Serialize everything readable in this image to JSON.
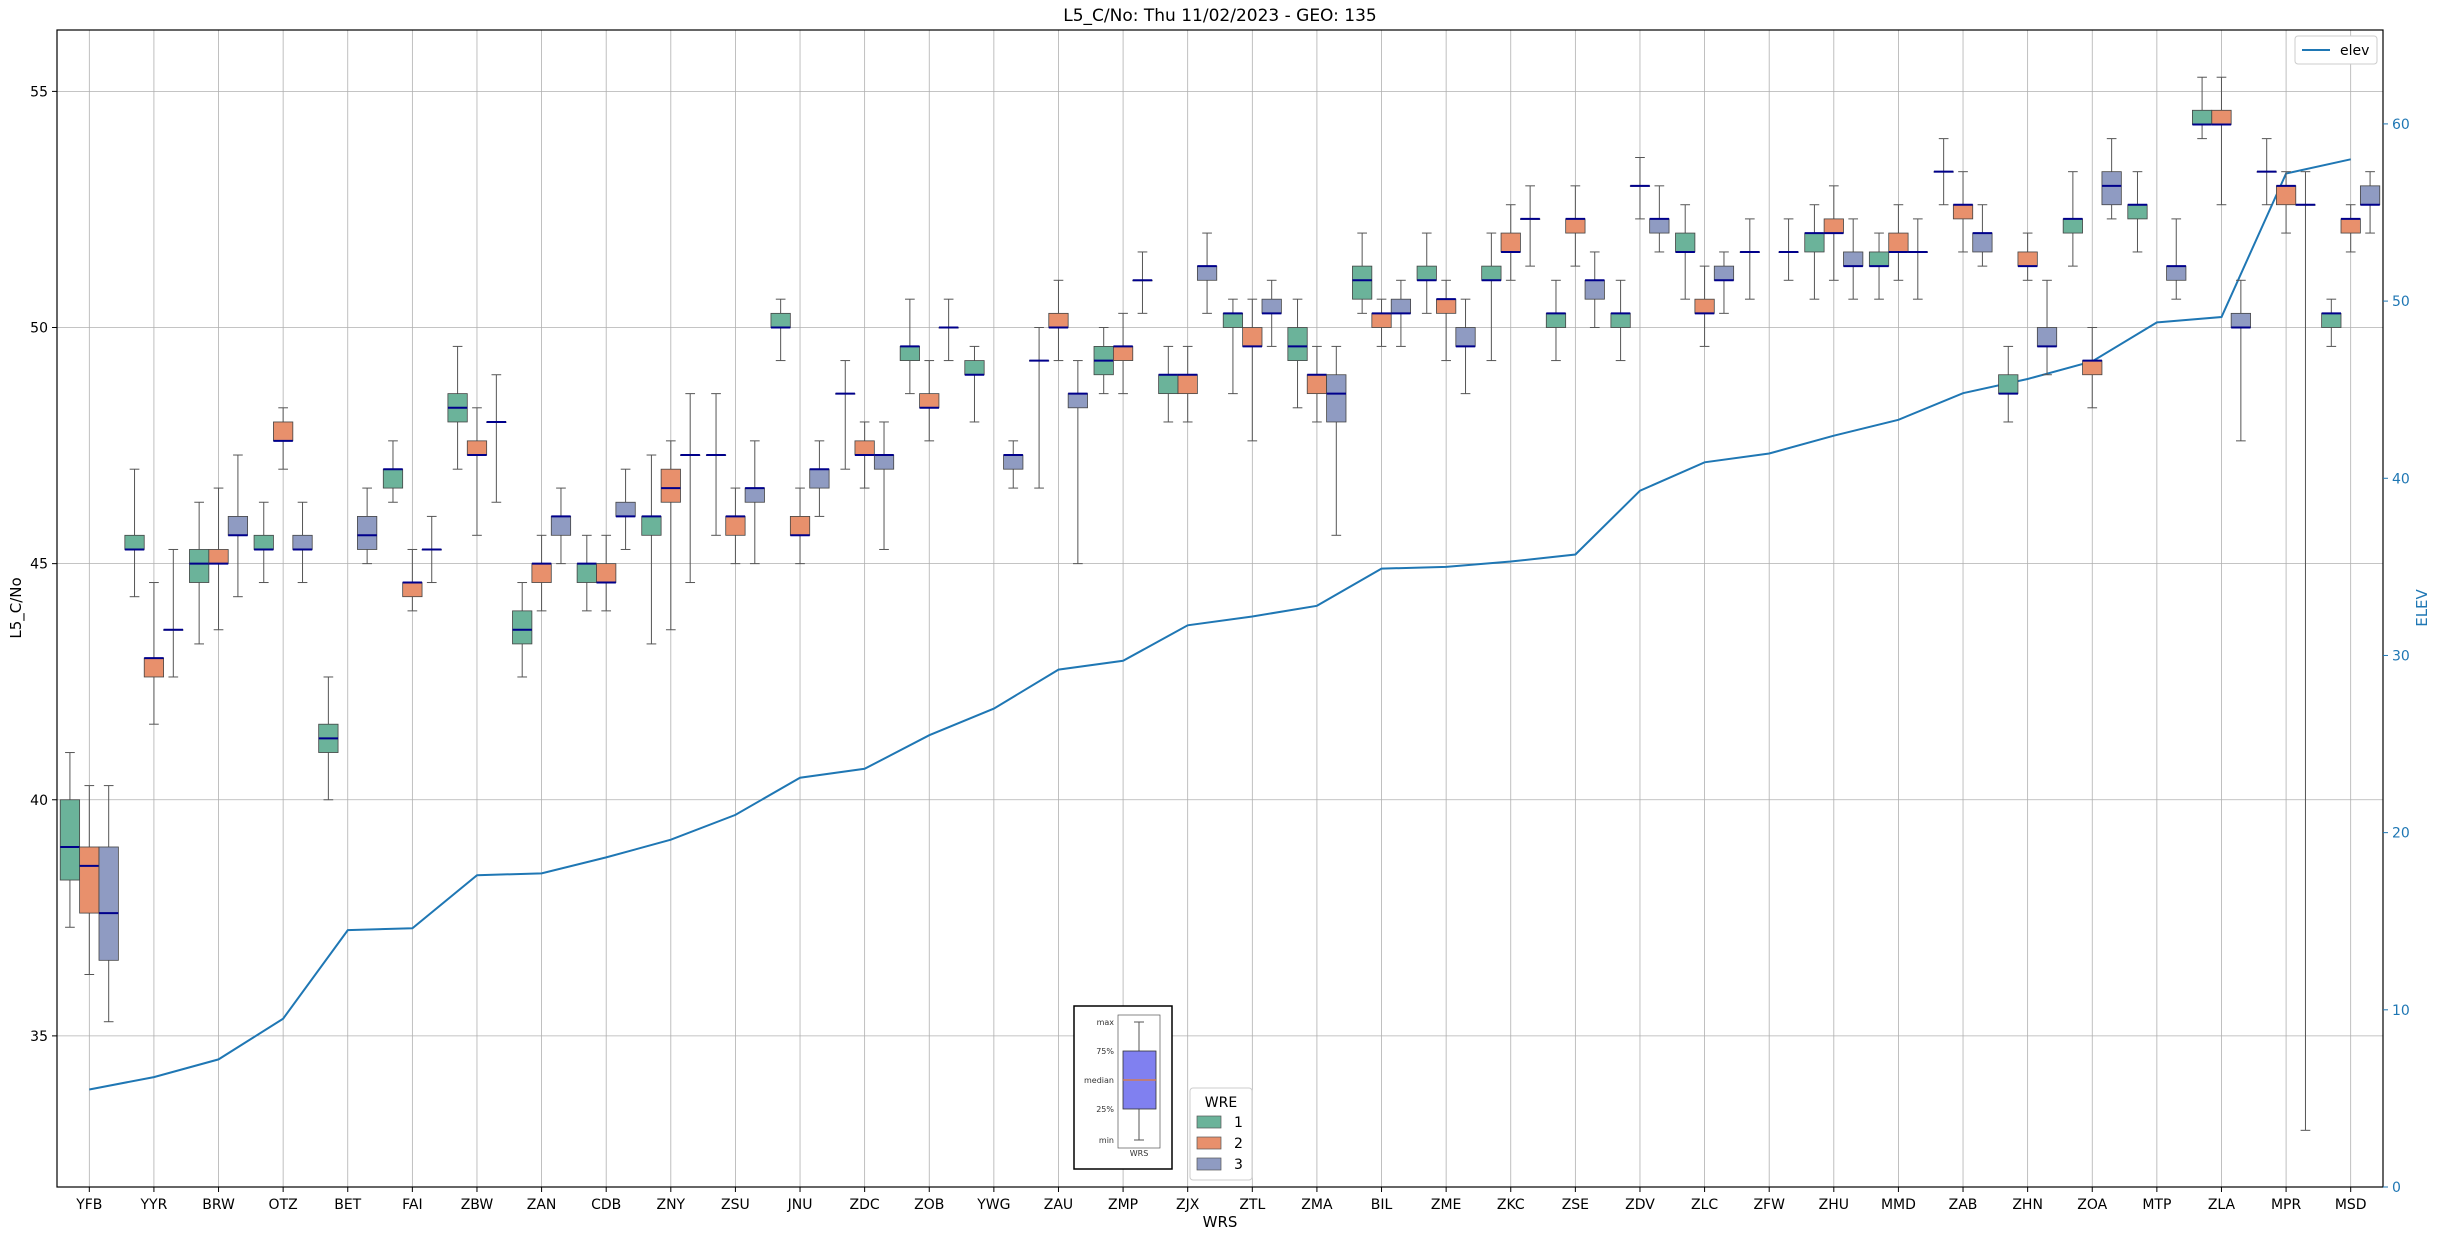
{
  "chart_data": {
    "type": "box",
    "title": "L5_C/No: Thu 11/02/2023 - GEO: 135",
    "xlabel": "WRS",
    "ylabel": "L5_C/No",
    "y2label": "ELEV",
    "ylim": [
      31.8,
      56.3
    ],
    "y2lim": [
      0,
      65.3
    ],
    "yticks": [
      35,
      40,
      45,
      50,
      55
    ],
    "y2ticks": [
      0,
      10,
      20,
      30,
      40,
      50,
      60
    ],
    "grid": true,
    "categories": [
      "YFB",
      "YYR",
      "BRW",
      "OTZ",
      "BET",
      "FAI",
      "ZBW",
      "ZAN",
      "CDB",
      "ZNY",
      "ZSU",
      "JNU",
      "ZDC",
      "ZOB",
      "YWG",
      "ZAU",
      "ZMP",
      "ZJX",
      "ZTL",
      "ZMA",
      "BIL",
      "ZME",
      "ZKC",
      "ZSE",
      "ZDV",
      "ZLC",
      "ZFW",
      "ZHU",
      "MMD",
      "ZAB",
      "ZHN",
      "ZOA",
      "MTP",
      "ZLA",
      "MPR",
      "MSD"
    ],
    "hue_legend": {
      "title": "WRE",
      "entries": [
        {
          "name": "1",
          "color": "#6bb39a"
        },
        {
          "name": "2",
          "color": "#e8906c"
        },
        {
          "name": "3",
          "color": "#8f9bc2"
        }
      ]
    },
    "box_series": [
      {
        "name": "1",
        "color": "#6bb39a",
        "boxes": [
          [
            37.3,
            38.3,
            39.0,
            40.0,
            41.0
          ],
          [
            44.3,
            45.3,
            45.3,
            45.6,
            47.0
          ],
          [
            43.3,
            44.6,
            45.0,
            45.3,
            46.3
          ],
          [
            44.6,
            45.3,
            45.3,
            45.6,
            46.3
          ],
          [
            40.0,
            41.0,
            41.3,
            41.6,
            42.6
          ],
          [
            46.3,
            46.6,
            47.0,
            47.0,
            47.6
          ],
          [
            47.0,
            48.0,
            48.3,
            48.6,
            49.6
          ],
          [
            42.6,
            43.3,
            43.6,
            44.0,
            44.6
          ],
          [
            44.0,
            44.6,
            45.0,
            45.0,
            45.6
          ],
          [
            43.3,
            45.6,
            46.0,
            46.0,
            47.3
          ],
          [
            45.6,
            47.3,
            47.3,
            47.3,
            48.6
          ],
          [
            49.3,
            50.0,
            50.0,
            50.3,
            50.6
          ],
          [
            47.0,
            48.6,
            48.6,
            48.6,
            49.3
          ],
          [
            48.6,
            49.3,
            49.6,
            49.6,
            50.6
          ],
          [
            48.0,
            49.0,
            49.0,
            49.3,
            49.6
          ],
          [
            46.6,
            49.3,
            49.3,
            49.3,
            50.0
          ],
          [
            48.6,
            49.0,
            49.3,
            49.6,
            50.0
          ],
          [
            48.0,
            48.6,
            49.0,
            49.0,
            49.6
          ],
          [
            48.6,
            50.0,
            50.3,
            50.3,
            50.6
          ],
          [
            48.3,
            49.3,
            49.6,
            50.0,
            50.6
          ],
          [
            50.3,
            50.6,
            51.0,
            51.3,
            52.0
          ],
          [
            50.3,
            51.0,
            51.0,
            51.3,
            52.0
          ],
          [
            49.3,
            51.0,
            51.0,
            51.3,
            52.0
          ],
          [
            49.3,
            50.0,
            50.3,
            50.3,
            51.0
          ],
          [
            49.3,
            50.0,
            50.3,
            50.3,
            51.0
          ],
          [
            50.6,
            51.6,
            51.6,
            52.0,
            52.6
          ],
          [
            50.6,
            51.6,
            51.6,
            51.6,
            52.3
          ],
          [
            50.6,
            51.6,
            52.0,
            52.0,
            52.6
          ],
          [
            50.6,
            51.3,
            51.3,
            51.6,
            52.0
          ],
          [
            52.6,
            53.3,
            53.3,
            53.3,
            54.0
          ],
          [
            48.0,
            48.6,
            48.6,
            49.0,
            49.6
          ],
          [
            51.3,
            52.0,
            52.3,
            52.3,
            53.3
          ],
          [
            51.6,
            52.3,
            52.6,
            52.6,
            53.3
          ],
          [
            54.0,
            54.3,
            54.3,
            54.6,
            55.3
          ],
          [
            52.6,
            53.3,
            53.3,
            53.3,
            54.0
          ],
          [
            49.6,
            50.0,
            50.3,
            50.3,
            50.6
          ]
        ]
      },
      {
        "name": "2",
        "color": "#e8906c",
        "boxes": [
          [
            36.3,
            37.6,
            38.6,
            39.0,
            40.3
          ],
          [
            41.6,
            42.6,
            43.0,
            43.0,
            44.6
          ],
          [
            43.6,
            45.0,
            45.0,
            45.3,
            46.6
          ],
          [
            47.0,
            47.6,
            47.6,
            48.0,
            48.3
          ],
          [
            null,
            null,
            null,
            null,
            null
          ],
          [
            44.0,
            44.3,
            44.6,
            44.6,
            45.3
          ],
          [
            45.6,
            47.3,
            47.3,
            47.6,
            48.3
          ],
          [
            44.0,
            44.6,
            45.0,
            45.0,
            45.6
          ],
          [
            44.0,
            44.6,
            44.6,
            45.0,
            45.6
          ],
          [
            43.6,
            46.3,
            46.6,
            47.0,
            47.6
          ],
          [
            45.0,
            45.6,
            46.0,
            46.0,
            46.6
          ],
          [
            45.0,
            45.6,
            45.6,
            46.0,
            46.6
          ],
          [
            46.6,
            47.3,
            47.3,
            47.6,
            48.0
          ],
          [
            47.6,
            48.3,
            48.3,
            48.6,
            49.3
          ],
          [
            null,
            null,
            null,
            null,
            null
          ],
          [
            49.3,
            50.0,
            50.0,
            50.3,
            51.0
          ],
          [
            48.6,
            49.3,
            49.6,
            49.6,
            50.3
          ],
          [
            48.0,
            48.6,
            49.0,
            49.0,
            49.6
          ],
          [
            47.6,
            49.6,
            49.6,
            50.0,
            50.6
          ],
          [
            48.0,
            48.6,
            49.0,
            49.0,
            49.6
          ],
          [
            49.6,
            50.0,
            50.3,
            50.3,
            50.6
          ],
          [
            49.3,
            50.3,
            50.6,
            50.6,
            51.0
          ],
          [
            51.0,
            51.6,
            51.6,
            52.0,
            52.6
          ],
          [
            51.3,
            52.0,
            52.3,
            52.3,
            53.0
          ],
          [
            52.3,
            53.0,
            53.0,
            53.0,
            53.6
          ],
          [
            49.6,
            50.3,
            50.3,
            50.6,
            51.3
          ],
          [
            null,
            null,
            null,
            null,
            null
          ],
          [
            51.0,
            52.0,
            52.0,
            52.3,
            53.0
          ],
          [
            51.0,
            51.6,
            51.6,
            52.0,
            52.6
          ],
          [
            51.6,
            52.3,
            52.6,
            52.6,
            53.3
          ],
          [
            51.0,
            51.3,
            51.3,
            51.6,
            52.0
          ],
          [
            48.3,
            49.0,
            49.3,
            49.3,
            50.0
          ],
          [
            null,
            null,
            null,
            null,
            null
          ],
          [
            52.6,
            54.3,
            54.3,
            54.6,
            55.3
          ],
          [
            52.0,
            52.6,
            53.0,
            53.0,
            53.3
          ],
          [
            51.6,
            52.0,
            52.3,
            52.3,
            52.6
          ]
        ]
      },
      {
        "name": "3",
        "color": "#8f9bc2",
        "boxes": [
          [
            35.3,
            36.6,
            37.6,
            39.0,
            40.3
          ],
          [
            42.6,
            43.6,
            43.6,
            43.6,
            45.3
          ],
          [
            44.3,
            45.6,
            45.6,
            46.0,
            47.3
          ],
          [
            44.6,
            45.3,
            45.3,
            45.6,
            46.3
          ],
          [
            45.0,
            45.3,
            45.6,
            46.0,
            46.6
          ],
          [
            44.6,
            45.3,
            45.3,
            45.3,
            46.0
          ],
          [
            46.3,
            48.0,
            48.0,
            48.0,
            49.0
          ],
          [
            45.0,
            45.6,
            46.0,
            46.0,
            46.6
          ],
          [
            45.3,
            46.0,
            46.0,
            46.3,
            47.0
          ],
          [
            44.6,
            47.3,
            47.3,
            47.3,
            48.6
          ],
          [
            45.0,
            46.3,
            46.6,
            46.6,
            47.6
          ],
          [
            46.0,
            46.6,
            47.0,
            47.0,
            47.6
          ],
          [
            45.3,
            47.0,
            47.3,
            47.3,
            48.0
          ],
          [
            49.3,
            50.0,
            50.0,
            50.0,
            50.6
          ],
          [
            46.6,
            47.0,
            47.3,
            47.3,
            47.6
          ],
          [
            45.0,
            48.3,
            48.6,
            48.6,
            49.3
          ],
          [
            50.3,
            51.0,
            51.0,
            51.0,
            51.6
          ],
          [
            50.3,
            51.0,
            51.3,
            51.3,
            52.0
          ],
          [
            49.6,
            50.3,
            50.3,
            50.6,
            51.0
          ],
          [
            45.6,
            48.0,
            48.6,
            49.0,
            49.6
          ],
          [
            49.6,
            50.3,
            50.3,
            50.6,
            51.0
          ],
          [
            48.6,
            49.6,
            49.6,
            50.0,
            50.6
          ],
          [
            51.3,
            52.3,
            52.3,
            52.3,
            53.0
          ],
          [
            50.0,
            50.6,
            51.0,
            51.0,
            51.6
          ],
          [
            51.6,
            52.0,
            52.3,
            52.3,
            53.0
          ],
          [
            50.3,
            51.0,
            51.0,
            51.3,
            51.6
          ],
          [
            51.0,
            51.6,
            51.6,
            51.6,
            52.3
          ],
          [
            50.6,
            51.3,
            51.3,
            51.6,
            52.3
          ],
          [
            50.6,
            51.6,
            51.6,
            51.6,
            52.3
          ],
          [
            51.3,
            51.6,
            52.0,
            52.0,
            52.6
          ],
          [
            49.0,
            49.6,
            49.6,
            50.0,
            51.0
          ],
          [
            52.3,
            52.6,
            53.0,
            53.3,
            54.0
          ],
          [
            50.6,
            51.0,
            51.3,
            51.3,
            52.3
          ],
          [
            47.6,
            50.0,
            50.0,
            50.3,
            51.0
          ],
          [
            33.0,
            52.6,
            52.6,
            52.6,
            53.3
          ],
          [
            52.0,
            52.6,
            52.6,
            53.0,
            53.3
          ]
        ]
      }
    ],
    "line_series": {
      "name": "elev",
      "axis": "right",
      "color": "#1f77b4",
      "values": [
        5.5,
        6.2,
        7.2,
        9.5,
        14.5,
        14.6,
        17.6,
        17.7,
        18.6,
        19.6,
        21.0,
        23.1,
        23.6,
        25.5,
        27.0,
        29.2,
        29.7,
        31.7,
        32.2,
        32.8,
        34.9,
        35.0,
        35.3,
        35.7,
        39.3,
        40.9,
        41.4,
        42.4,
        43.3,
        44.8,
        45.6,
        46.6,
        48.8,
        49.1,
        57.2,
        58.0
      ]
    },
    "legends": {
      "line": "top-right",
      "hue": "bottom-center"
    },
    "inset_key": {
      "labels": [
        "max",
        "75%",
        "median",
        "25%",
        "min"
      ],
      "xlabel": "WRS"
    }
  }
}
